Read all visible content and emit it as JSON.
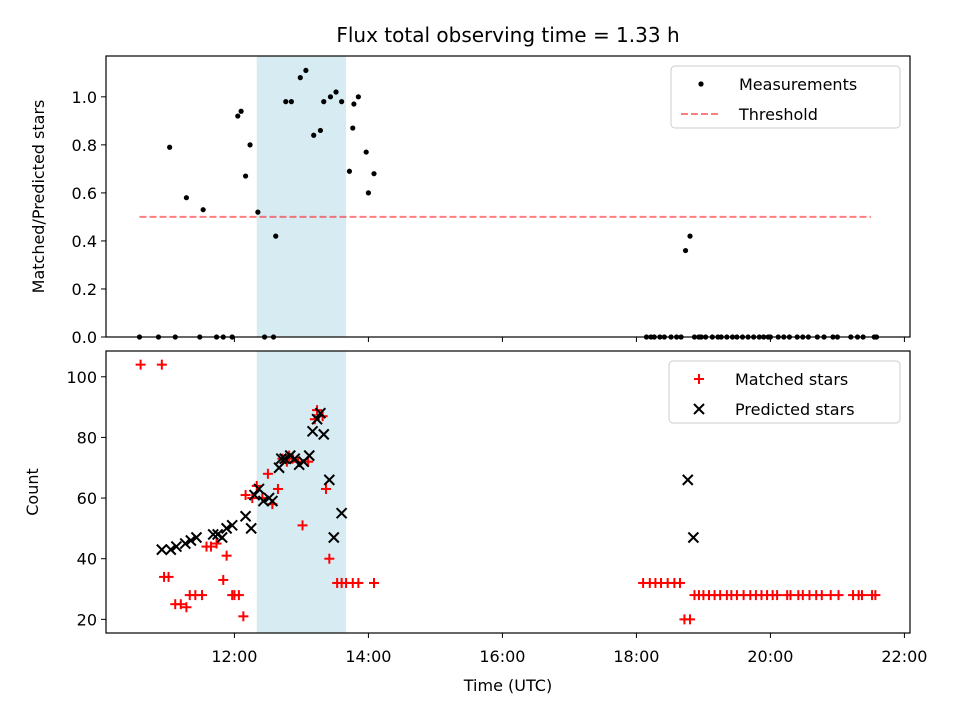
{
  "chart_data": [
    {
      "type": "scatter",
      "title": "Flux total observing time = 1.33 h",
      "xlabel": "",
      "ylabel": "Matched/Predicted stars",
      "xlim": [
        "10:05",
        "22:05"
      ],
      "ylim": [
        0,
        1.17
      ],
      "yticks": [
        0.0,
        0.2,
        0.4,
        0.6,
        0.8,
        1.0
      ],
      "ytick_labels": [
        "0.0",
        "0.2",
        "0.4",
        "0.6",
        "0.8",
        "1.0"
      ],
      "xticks": [
        "12:00",
        "14:00",
        "16:00",
        "18:00",
        "20:00",
        "22:00"
      ],
      "xtick_labels_visible": false,
      "shaded_interval": {
        "start": "12:20",
        "end": "13:40",
        "color": "#add8e6"
      },
      "legend": {
        "position": "upper right",
        "entries": [
          "Measurements",
          "Threshold"
        ]
      },
      "colors": {
        "Measurements": "#000000",
        "Threshold": "#ff0000"
      },
      "series": [
        {
          "name": "Measurements",
          "x": [
            "10:35",
            "10:52",
            "11:02",
            "11:07",
            "11:17",
            "11:29",
            "11:32",
            "11:44",
            "11:50",
            "11:58",
            "12:03",
            "12:06",
            "12:10",
            "12:14",
            "12:21",
            "12:27",
            "12:35",
            "12:37",
            "12:46",
            "12:51",
            "12:59",
            "13:04",
            "13:11",
            "13:17",
            "13:20",
            "13:26",
            "13:31",
            "13:36",
            "13:43",
            "13:46",
            "13:47",
            "13:51",
            "13:58",
            "14:00",
            "14:05",
            "18:09",
            "18:13",
            "18:16",
            "18:21",
            "18:25",
            "18:31",
            "18:36",
            "18:40",
            "18:44",
            "18:48",
            "18:52",
            "18:56",
            "18:58",
            "19:02",
            "19:08",
            "19:13",
            "19:16",
            "19:21",
            "19:26",
            "19:30",
            "19:35",
            "19:40",
            "19:45",
            "19:50",
            "19:54",
            "19:58",
            "20:00",
            "20:07",
            "20:12",
            "20:17",
            "20:24",
            "20:29",
            "20:34",
            "20:42",
            "20:48",
            "20:56",
            "21:00",
            "21:12",
            "21:18",
            "21:23",
            "21:33",
            "21:35"
          ],
          "y": [
            0,
            0,
            0.79,
            0,
            0.58,
            0,
            0.53,
            0,
            0,
            0,
            0.92,
            0.94,
            0.67,
            0.8,
            0.52,
            0,
            0,
            0.42,
            0.98,
            0.98,
            1.08,
            1.11,
            0.84,
            0.86,
            0.98,
            1.0,
            1.02,
            0.98,
            0.69,
            0.87,
            0.97,
            1.0,
            0.77,
            0.6,
            0.68,
            0,
            0,
            0,
            0,
            0,
            0,
            0,
            0,
            0.36,
            0.42,
            0,
            0,
            0,
            0,
            0,
            0,
            0,
            0,
            0,
            0,
            0,
            0,
            0,
            0,
            0,
            0,
            0,
            0,
            0,
            0,
            0,
            0,
            0,
            0,
            0,
            0,
            0,
            0,
            0,
            0,
            0,
            0
          ]
        },
        {
          "name": "Threshold",
          "x": [
            "10:35",
            "21:30"
          ],
          "y": [
            0.5,
            0.5
          ]
        }
      ]
    },
    {
      "type": "scatter",
      "title": "",
      "xlabel": "Time (UTC)",
      "ylabel": "Count",
      "xlim": [
        "10:05",
        "22:05"
      ],
      "ylim": [
        15.5,
        108.5
      ],
      "yticks": [
        20,
        40,
        60,
        80,
        100
      ],
      "ytick_labels": [
        "20",
        "40",
        "60",
        "80",
        "100"
      ],
      "xticks": [
        "12:00",
        "14:00",
        "16:00",
        "18:00",
        "20:00",
        "22:00"
      ],
      "xtick_labels": [
        "12:00",
        "14:00",
        "16:00",
        "18:00",
        "20:00",
        "22:00"
      ],
      "shaded_interval": {
        "start": "12:20",
        "end": "13:40",
        "color": "#add8e6"
      },
      "legend": {
        "position": "upper right",
        "entries": [
          "Matched stars",
          "Predicted stars"
        ]
      },
      "colors": {
        "Matched stars": "#ff0000",
        "Predicted stars": "#000000"
      },
      "series": [
        {
          "name": "Matched stars",
          "x": [
            "10:36",
            "10:55",
            "10:57",
            "11:01",
            "11:07",
            "11:12",
            "11:17",
            "11:20",
            "11:25",
            "11:31",
            "11:35",
            "11:39",
            "11:44",
            "11:50",
            "11:53",
            "11:58",
            "12:00",
            "12:04",
            "12:08",
            "12:10",
            "12:16",
            "12:20",
            "12:25",
            "12:30",
            "12:34",
            "12:39",
            "12:43",
            "12:47",
            "12:49",
            "12:52",
            "12:57",
            "13:01",
            "13:06",
            "13:12",
            "13:14",
            "13:19",
            "13:22",
            "13:25",
            "13:32",
            "13:36",
            "13:40",
            "13:46",
            "13:51",
            "14:05",
            "18:06",
            "18:12",
            "18:17",
            "18:22",
            "18:28",
            "18:34",
            "18:39",
            "18:43",
            "18:48",
            "18:52",
            "18:56",
            "19:00",
            "19:05",
            "19:10",
            "19:15",
            "19:21",
            "19:25",
            "19:30",
            "19:36",
            "19:42",
            "19:47",
            "19:52",
            "19:57",
            "20:02",
            "20:06",
            "20:15",
            "20:18",
            "20:25",
            "20:29",
            "20:35",
            "20:41",
            "20:46",
            "20:54",
            "21:01",
            "21:14",
            "21:19",
            "21:22",
            "21:31",
            "21:34"
          ],
          "y": [
            104,
            104,
            34,
            34,
            25,
            25,
            24,
            28,
            28,
            28,
            44,
            44,
            45,
            33,
            41,
            28,
            28,
            28,
            21,
            61,
            60,
            64,
            60,
            68,
            58,
            63,
            73,
            72,
            74,
            73,
            72,
            51,
            72,
            86,
            89,
            87,
            63,
            40,
            32,
            32,
            32,
            32,
            32,
            32,
            32,
            32,
            32,
            32,
            32,
            32,
            32,
            20,
            20,
            28,
            28,
            28,
            28,
            28,
            28,
            28,
            28,
            28,
            28,
            28,
            28,
            28,
            28,
            28,
            28,
            28,
            28,
            28,
            28,
            28,
            28,
            28,
            28,
            28,
            28,
            28,
            28,
            28,
            28
          ]
        },
        {
          "name": "Predicted stars",
          "x": [
            "10:55",
            "11:03",
            "11:08",
            "11:16",
            "11:21",
            "11:26",
            "11:41",
            "11:45",
            "11:49",
            "11:53",
            "11:58",
            "12:10",
            "12:15",
            "12:18",
            "12:22",
            "12:26",
            "12:31",
            "12:34",
            "12:40",
            "12:42",
            "12:45",
            "12:50",
            "12:54",
            "12:58",
            "13:02",
            "13:07",
            "13:10",
            "13:14",
            "13:17",
            "13:20",
            "13:25",
            "13:29",
            "13:36",
            "18:46",
            "18:51"
          ],
          "y": [
            43,
            43,
            44,
            45,
            46,
            47,
            48,
            48,
            47,
            50,
            51,
            54,
            50,
            61,
            63,
            59,
            60,
            59,
            70,
            73,
            73,
            74,
            73,
            71,
            72,
            74,
            82,
            86,
            88,
            81,
            66,
            47,
            55,
            66,
            47
          ]
        }
      ]
    }
  ]
}
